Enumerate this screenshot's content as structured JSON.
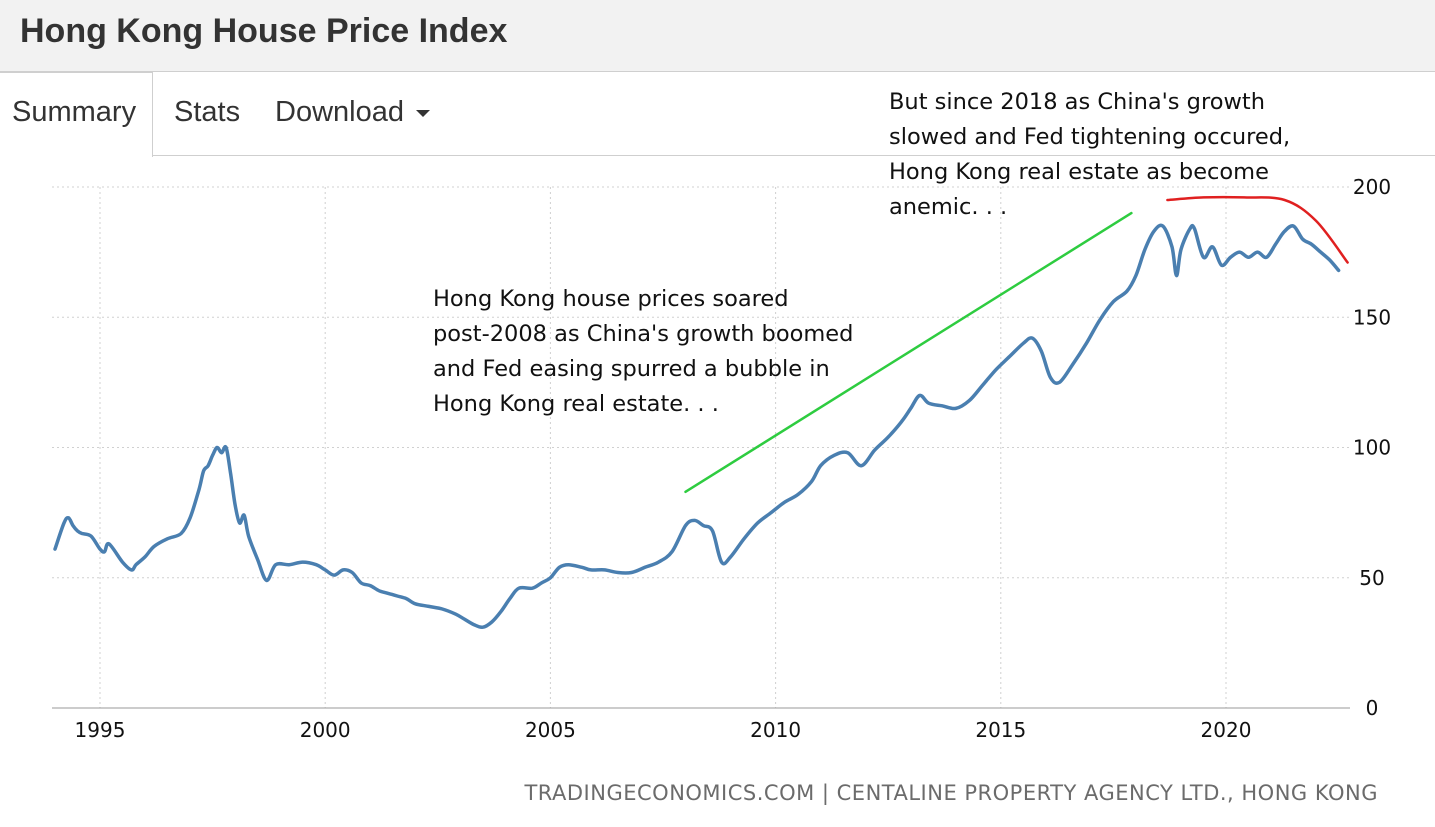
{
  "header": {
    "title": "Hong Kong House Price Index"
  },
  "tabs": [
    {
      "label": "Summary",
      "active": true
    },
    {
      "label": "Stats",
      "active": false
    },
    {
      "label": "Download",
      "active": false
    }
  ],
  "annotations": {
    "top_right": "But since 2018 as China's growth\nslowed and Fed tightening occured,\nHong Kong real estate as become\nanemic. . .",
    "middle": "Hong Kong house prices soared\npost-2008 as China's growth boomed\nand Fed easing spurred a bubble in\nHong Kong real estate. . ."
  },
  "source": "TRADINGECONOMICS.COM | CENTALINE PROPERTY AGENCY LTD., HONG KONG",
  "colors": {
    "series": "#4a7fb0",
    "uptrend": "#2ecc40",
    "downtrend": "#e02020",
    "grid": "#d0d0d0"
  },
  "chart_data": {
    "type": "line",
    "title": "Hong Kong House Price Index",
    "xlabel": "",
    "ylabel": "",
    "x_ticks": [
      1995,
      2000,
      2005,
      2010,
      2015,
      2020
    ],
    "y_ticks": [
      0,
      50,
      100,
      150,
      200
    ],
    "xlim": [
      1994.0,
      2022.7
    ],
    "ylim": [
      0,
      200
    ],
    "grid": true,
    "series": [
      {
        "name": "Hong Kong House Price Index",
        "x": [
          1994.0,
          1994.2,
          1994.3,
          1994.4,
          1994.5,
          1994.6,
          1994.8,
          1995.0,
          1995.1,
          1995.2,
          1995.5,
          1995.7,
          1995.8,
          1996.0,
          1996.2,
          1996.5,
          1996.8,
          1997.0,
          1997.2,
          1997.3,
          1997.4,
          1997.5,
          1997.6,
          1997.7,
          1997.8,
          1997.9,
          1998.0,
          1998.1,
          1998.2,
          1998.3,
          1998.5,
          1998.7,
          1998.9,
          1999.2,
          1999.5,
          1999.8,
          2000.0,
          2000.2,
          2000.4,
          2000.6,
          2000.8,
          2001.0,
          2001.2,
          2001.4,
          2001.6,
          2001.8,
          2002.0,
          2002.3,
          2002.6,
          2002.9,
          2003.1,
          2003.3,
          2003.5,
          2003.7,
          2003.9,
          2004.1,
          2004.3,
          2004.6,
          2004.8,
          2005.0,
          2005.2,
          2005.4,
          2005.7,
          2005.9,
          2006.2,
          2006.5,
          2006.8,
          2007.1,
          2007.4,
          2007.7,
          2008.0,
          2008.2,
          2008.4,
          2008.6,
          2008.8,
          2009.0,
          2009.3,
          2009.6,
          2009.9,
          2010.2,
          2010.5,
          2010.8,
          2011.0,
          2011.3,
          2011.6,
          2011.9,
          2012.2,
          2012.5,
          2012.8,
          2013.0,
          2013.2,
          2013.4,
          2013.7,
          2014.0,
          2014.3,
          2014.6,
          2014.9,
          2015.2,
          2015.5,
          2015.7,
          2015.9,
          2016.1,
          2016.3,
          2016.6,
          2016.9,
          2017.2,
          2017.5,
          2017.8,
          2018.0,
          2018.2,
          2018.4,
          2018.6,
          2018.8,
          2018.9,
          2019.0,
          2019.2,
          2019.3,
          2019.5,
          2019.7,
          2019.9,
          2020.1,
          2020.3,
          2020.5,
          2020.7,
          2020.9,
          2021.1,
          2021.3,
          2021.5,
          2021.7,
          2021.9,
          2022.1,
          2022.3,
          2022.5
        ],
        "values": [
          61,
          71,
          73,
          70,
          68,
          67,
          66,
          61,
          60,
          63,
          56,
          53,
          55,
          58,
          62,
          65,
          67,
          73,
          84,
          91,
          93,
          97,
          100,
          98,
          100,
          90,
          78,
          71,
          74,
          66,
          57,
          49,
          55,
          55,
          56,
          55,
          53,
          51,
          53,
          52,
          48,
          47,
          45,
          44,
          43,
          42,
          40,
          39,
          38,
          36,
          34,
          32,
          31,
          33,
          37,
          42,
          46,
          46,
          48,
          50,
          54,
          55,
          54,
          53,
          53,
          52,
          52,
          54,
          56,
          60,
          70,
          72,
          70,
          68,
          56,
          58,
          65,
          71,
          75,
          79,
          82,
          87,
          93,
          97,
          98,
          93,
          99,
          104,
          110,
          115,
          120,
          117,
          116,
          115,
          118,
          124,
          130,
          135,
          140,
          142,
          137,
          127,
          125,
          132,
          140,
          149,
          156,
          160,
          166,
          176,
          183,
          185,
          177,
          166,
          176,
          184,
          184,
          173,
          177,
          170,
          173,
          175,
          173,
          175,
          173,
          178,
          183,
          185,
          180,
          178,
          175,
          172,
          168
        ]
      }
    ],
    "trendlines": [
      {
        "name": "uptrend",
        "x": [
          2008.0,
          2017.9
        ],
        "y": [
          83,
          190
        ]
      },
      {
        "name": "downtrend",
        "x": [
          2018.7,
          2019.5,
          2020.4,
          2021.3,
          2022.0,
          2022.7
        ],
        "y": [
          195,
          196,
          196,
          195,
          187,
          171
        ]
      }
    ]
  }
}
